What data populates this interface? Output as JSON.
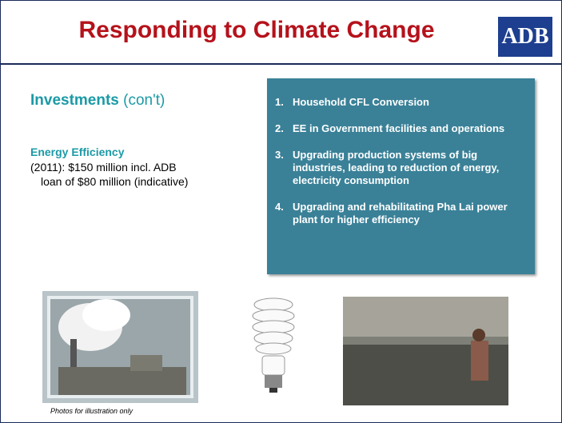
{
  "header": {
    "title": "Responding to Climate Change",
    "logo": "ADB"
  },
  "left": {
    "heading": "Investments",
    "heading_suffix": "(con't)",
    "subheading": "Energy Efficiency",
    "lines": [
      "(2011): $150 million incl. ADB",
      "loan of $80 million (indicative)"
    ]
  },
  "box": {
    "items": [
      {
        "number": "1.",
        "text": "Household CFL Conversion"
      },
      {
        "number": "2.",
        "text": "EE in Government facilities and operations"
      },
      {
        "number": "3.",
        "text": "Upgrading production systems of big industries, leading to reduction of energy, electricity consumption"
      },
      {
        "number": "4.",
        "text": "Upgrading and rehabilitating Pha Lai power plant for higher efficiency"
      }
    ]
  },
  "caption": "Photos for illustration only"
}
